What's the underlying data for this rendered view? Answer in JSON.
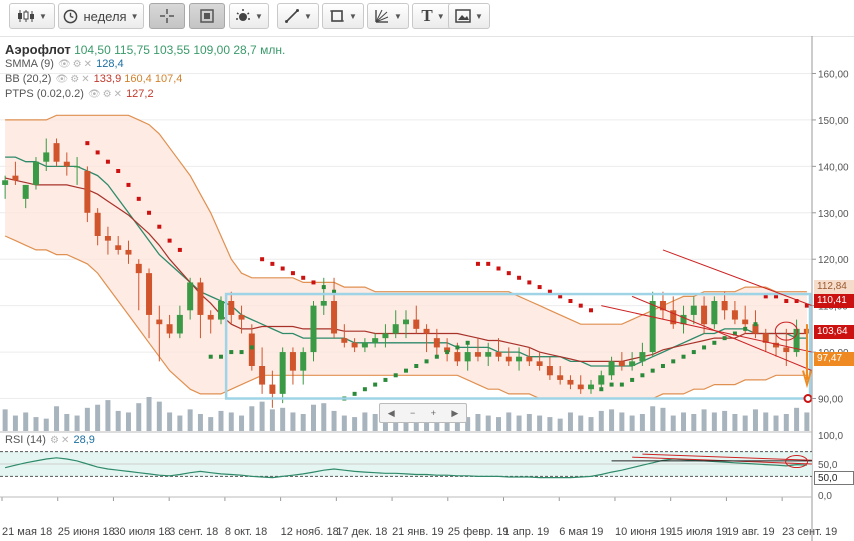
{
  "toolbar": {
    "items": [
      {
        "name": "candles-type-button",
        "icon": "candlestick-icon",
        "label": "",
        "active": false
      },
      {
        "name": "period-select",
        "icon": "clock-icon",
        "label": "неделя",
        "active": false
      },
      {
        "name": "crosshair-button",
        "icon": "crosshair-icon",
        "label": "",
        "active": true
      },
      {
        "name": "zoom-button",
        "icon": "zoom-frame-icon",
        "label": "",
        "active": true
      },
      {
        "name": "indicators-button",
        "icon": "indicator-icon",
        "label": "",
        "active": false
      },
      {
        "name": "line-tool-button",
        "icon": "pencil-line-icon",
        "label": "",
        "active": false
      },
      {
        "name": "shape-tool-button",
        "icon": "square-icon",
        "label": "",
        "active": false
      },
      {
        "name": "fibonacci-tool-button",
        "icon": "fan-icon",
        "label": "",
        "active": false
      },
      {
        "name": "text-tool-button",
        "icon": "text-icon",
        "label": "T",
        "active": false
      },
      {
        "name": "image-button",
        "icon": "picture-icon",
        "label": "",
        "active": false
      }
    ]
  },
  "legend": {
    "ticker": "Аэрофлот",
    "ohlc": [
      "104,50",
      "115,75",
      "103,55",
      "109,00"
    ],
    "volume": "28,7 млн.",
    "smma_name": "SMMA (9)",
    "smma_value": "128,4",
    "bb_name": "BB (20,2)",
    "bb_values": [
      "133,9",
      "160,4",
      "107,4"
    ],
    "ptps_name": "PTPS (0.02,0.2)",
    "ptps_value": "127,2",
    "rsi_name": "RSI (14)",
    "rsi_value": "28,9"
  },
  "price_labels": [
    {
      "text": "112,84",
      "bg": "#f6dccb",
      "color": "#9a5a2e"
    },
    {
      "text": "110,41",
      "bg": "#cc1111",
      "color": "#ffffff"
    },
    {
      "text": "103,64",
      "bg": "#cc1111",
      "color": "#ffffff"
    },
    {
      "text": "97,47",
      "bg": "#ef8a22",
      "color": "#ffffff"
    }
  ],
  "rsi_label": "50,0",
  "colors": {
    "up": "#3a9a45",
    "down": "#d0552c",
    "smma": "#2f8a6a",
    "ptps": "#cc1111",
    "bb": "#e09050",
    "bb_fill": "#fde6dd",
    "rect": "#9fd4e6",
    "volume": "#a8b4bd",
    "rsi": "#2f8a6a"
  },
  "chart_data": {
    "type": "candlestick",
    "price_axis": {
      "min": 83,
      "max": 167,
      "ticks": [
        "160,00",
        "150,00",
        "140,00",
        "130,00",
        "120,00",
        "110,00",
        "100,00",
        "90,00"
      ]
    },
    "x_ticks": [
      "21 мая 18",
      "25 июня 18",
      "30 июля 18",
      "3 сент. 18",
      "8 окт. 18",
      "12 нояб. 18",
      "17 дек. 18",
      "21 янв. 19",
      "25 февр. 19",
      "1 апр. 19",
      "6 мая 19",
      "10 июня 19",
      "15 июля 19",
      "19 авг. 19",
      "23 сент. 19"
    ],
    "rsi_axis": {
      "ticks": [
        "100,0",
        "50,0",
        "0,0"
      ]
    },
    "candles": [
      [
        136,
        138,
        133,
        137
      ],
      [
        138,
        141,
        136,
        137
      ],
      [
        133,
        136,
        131,
        136
      ],
      [
        136,
        142,
        135,
        141
      ],
      [
        141,
        146,
        139,
        143
      ],
      [
        145,
        146,
        140,
        141
      ],
      [
        141,
        143,
        138,
        140
      ],
      [
        140,
        142,
        136,
        140
      ],
      [
        139,
        140,
        128,
        130
      ],
      [
        130,
        131,
        123,
        125
      ],
      [
        125,
        127,
        121,
        124
      ],
      [
        123,
        125,
        121,
        122
      ],
      [
        122,
        124,
        119,
        121
      ],
      [
        119,
        120,
        109,
        117
      ],
      [
        117,
        118,
        103,
        108
      ],
      [
        107,
        110,
        98,
        106
      ],
      [
        106,
        108,
        103,
        104
      ],
      [
        104,
        110,
        103,
        108
      ],
      [
        109,
        116,
        107,
        115
      ],
      [
        115,
        116,
        103,
        108
      ],
      [
        108,
        109,
        104,
        107
      ],
      [
        107,
        112,
        106,
        111
      ],
      [
        111,
        113,
        106,
        108
      ],
      [
        108,
        110,
        104,
        107
      ],
      [
        104,
        106,
        96,
        97
      ],
      [
        97,
        101,
        91,
        93
      ],
      [
        93,
        96,
        88,
        91
      ],
      [
        91,
        101,
        89,
        100
      ],
      [
        100,
        101,
        93,
        96
      ],
      [
        96,
        101,
        93,
        100
      ],
      [
        100,
        111,
        98,
        110
      ],
      [
        110,
        116,
        108,
        111
      ],
      [
        111,
        116,
        103,
        104
      ],
      [
        103,
        106,
        101,
        102
      ],
      [
        102,
        103,
        100,
        101
      ],
      [
        101,
        103,
        100,
        102
      ],
      [
        102,
        104,
        101,
        103
      ],
      [
        103,
        106,
        101,
        104
      ],
      [
        104,
        109,
        103,
        106
      ],
      [
        106,
        109,
        103,
        107
      ],
      [
        107,
        110,
        104,
        105
      ],
      [
        105,
        106,
        100,
        104
      ],
      [
        103,
        105,
        99,
        101
      ],
      [
        101,
        103,
        98,
        100
      ],
      [
        100,
        102,
        97,
        98
      ],
      [
        98,
        102,
        96,
        100
      ],
      [
        100,
        103,
        98,
        99
      ],
      [
        99,
        102,
        97,
        100
      ],
      [
        100,
        103,
        98,
        99
      ],
      [
        99,
        101,
        97,
        98
      ],
      [
        98,
        101,
        96,
        99
      ],
      [
        99,
        101,
        97,
        98
      ],
      [
        98,
        100,
        96,
        97
      ],
      [
        97,
        99,
        94,
        95
      ],
      [
        95,
        97,
        93,
        94
      ],
      [
        94,
        95,
        92,
        93
      ],
      [
        93,
        95,
        91,
        92
      ],
      [
        92,
        94,
        91,
        93
      ],
      [
        93,
        96,
        92,
        95
      ],
      [
        95,
        99,
        94,
        98
      ],
      [
        98,
        100,
        96,
        97
      ],
      [
        97,
        100,
        96,
        98
      ],
      [
        98,
        102,
        97,
        100
      ],
      [
        100,
        113,
        99,
        111
      ],
      [
        111,
        113,
        107,
        109
      ],
      [
        109,
        112,
        105,
        106
      ],
      [
        106,
        110,
        104,
        108
      ],
      [
        108,
        112,
        106,
        110
      ],
      [
        110,
        112,
        104,
        106
      ],
      [
        106,
        112,
        105,
        111
      ],
      [
        111,
        113,
        107,
        109
      ],
      [
        109,
        111,
        106,
        107
      ],
      [
        107,
        110,
        104,
        106
      ],
      [
        106,
        109,
        103,
        104
      ],
      [
        104,
        105,
        100,
        102
      ],
      [
        102,
        104,
        99,
        101
      ],
      [
        101,
        105,
        97,
        100
      ],
      [
        100,
        107,
        99,
        105
      ],
      [
        105,
        106,
        101,
        104
      ]
    ],
    "smma": [
      142,
      142,
      141,
      141,
      140,
      140,
      140,
      140,
      139,
      138,
      136,
      133,
      130,
      127,
      124,
      121,
      119,
      117,
      115,
      113,
      112,
      111,
      110,
      108,
      107,
      106,
      105,
      104,
      104,
      103,
      103,
      103,
      103,
      103,
      102,
      102,
      102,
      102,
      102,
      102,
      102,
      102,
      102,
      102,
      101,
      101,
      101,
      101,
      100,
      100,
      100,
      99,
      99,
      99,
      99,
      98,
      98,
      97,
      97,
      97,
      97,
      97,
      98,
      99,
      100,
      101,
      102,
      103,
      104,
      104,
      105,
      105,
      105,
      104,
      104,
      104,
      104,
      103,
      103
    ],
    "bb_upper": [
      150,
      150,
      150,
      150,
      150,
      151,
      151,
      151,
      151,
      151,
      151,
      151,
      151,
      150,
      149,
      147,
      144,
      141,
      138,
      134,
      130,
      125,
      120,
      117,
      116,
      116,
      116,
      116,
      116,
      115,
      115,
      115,
      115,
      114,
      114,
      114,
      113,
      113,
      113,
      113,
      113,
      113,
      113,
      113,
      113,
      113,
      113,
      113,
      113,
      113,
      112,
      111,
      110,
      109,
      108,
      107,
      106,
      106,
      106,
      106,
      106,
      107,
      108,
      109,
      110,
      111,
      112,
      112,
      113,
      113,
      113,
      113,
      114,
      114,
      114,
      113,
      113,
      113,
      113
    ],
    "bb_lower": [
      125,
      124,
      123,
      122,
      122,
      121,
      121,
      120,
      119,
      117,
      114,
      111,
      108,
      105,
      102,
      99,
      96,
      94,
      92,
      91,
      91,
      91,
      92,
      93,
      94,
      95,
      95,
      95,
      95,
      95,
      95,
      95,
      95,
      95,
      95,
      95,
      95,
      95,
      95,
      95,
      95,
      95,
      95,
      95,
      95,
      94,
      93,
      92,
      92,
      91,
      91,
      91,
      90,
      90,
      90,
      90,
      90,
      90,
      90,
      90,
      90,
      90,
      90,
      90,
      91,
      91,
      91,
      92,
      92,
      93,
      93,
      93,
      94,
      94,
      94,
      95,
      95,
      95,
      95
    ],
    "ptps": [
      null,
      null,
      null,
      null,
      null,
      null,
      null,
      null,
      145,
      143,
      141,
      139,
      136,
      133,
      130,
      127,
      124,
      122,
      null,
      null,
      99,
      99,
      100,
      100,
      101,
      120,
      119,
      118,
      117,
      116,
      115,
      114,
      113,
      90,
      91,
      92,
      93,
      94,
      95,
      96,
      97,
      98,
      99,
      100,
      101,
      102,
      119,
      119,
      118,
      117,
      116,
      115,
      114,
      113,
      112,
      111,
      110,
      109,
      92,
      93,
      93,
      94,
      95,
      96,
      97,
      98,
      99,
      100,
      101,
      102,
      103,
      104,
      105,
      106,
      112,
      112,
      111,
      111,
      110
    ],
    "volume": [
      14,
      10,
      12,
      9,
      8,
      16,
      11,
      10,
      15,
      17,
      20,
      13,
      12,
      18,
      22,
      19,
      12,
      10,
      14,
      11,
      9,
      13,
      12,
      10,
      16,
      19,
      14,
      15,
      12,
      11,
      17,
      18,
      13,
      10,
      9,
      12,
      11,
      10,
      14,
      9,
      10,
      12,
      11,
      13,
      10,
      9,
      11,
      10,
      9,
      12,
      10,
      11,
      10,
      9,
      8,
      12,
      10,
      9,
      13,
      14,
      12,
      10,
      11,
      16,
      15,
      10,
      12,
      11,
      14,
      12,
      13,
      11,
      10,
      14,
      12,
      10,
      11,
      15,
      12
    ],
    "rsi": [
      44,
      48,
      52,
      55,
      58,
      60,
      58,
      55,
      50,
      45,
      42,
      40,
      38,
      36,
      34,
      32,
      31,
      33,
      36,
      38,
      36,
      34,
      33,
      32,
      30,
      29,
      28,
      30,
      32,
      34,
      37,
      40,
      42,
      40,
      38,
      37,
      36,
      35,
      35,
      34,
      33,
      33,
      32,
      32,
      31,
      31,
      30,
      30,
      30,
      29,
      29,
      29,
      28,
      28,
      28,
      28,
      29,
      30,
      33,
      37,
      40,
      44,
      48,
      52,
      56,
      58,
      57,
      56,
      55,
      54,
      53,
      52,
      51,
      50,
      49,
      48,
      47,
      49,
      48
    ],
    "rect": {
      "from": 22,
      "to": 79,
      "top": 112.5,
      "bottom": 90
    },
    "trendlines": [
      {
        "x1": 61,
        "y1": 112,
        "x2": 79,
        "y2": 96
      },
      {
        "x1": 64,
        "y1": 122,
        "x2": 79,
        "y2": 110
      },
      {
        "x1": 58,
        "y1": 110,
        "x2": 79,
        "y2": 100
      }
    ]
  }
}
